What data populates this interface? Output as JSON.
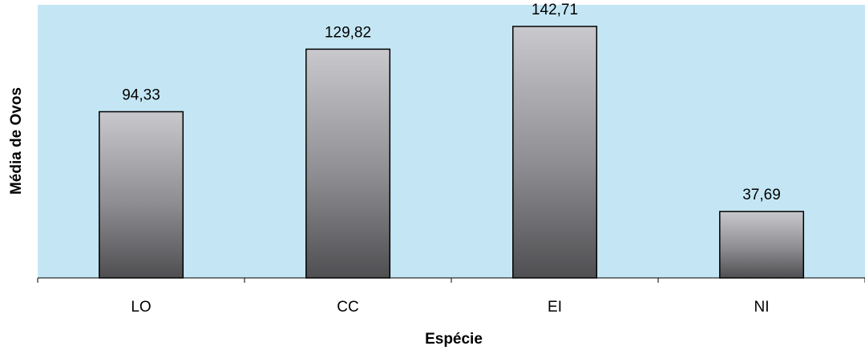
{
  "chart_data": {
    "type": "bar",
    "categories": [
      "LO",
      "CC",
      "EI",
      "NI"
    ],
    "values": [
      94.33,
      129.82,
      142.71,
      37.69
    ],
    "value_labels": [
      "94,33",
      "129,82",
      "142,71",
      "37,69"
    ],
    "title": "",
    "xlabel": "Espécie",
    "ylabel": "Média de Ovos",
    "ylim": [
      0,
      155
    ],
    "grid": false,
    "legend": "none",
    "colors": {
      "plot_background": "#c4e6f4",
      "bar_top": "#c9c9cd",
      "bar_middle": "#8e8e92",
      "bar_bottom": "#4f4f52",
      "bar_outline": "#000000"
    }
  }
}
